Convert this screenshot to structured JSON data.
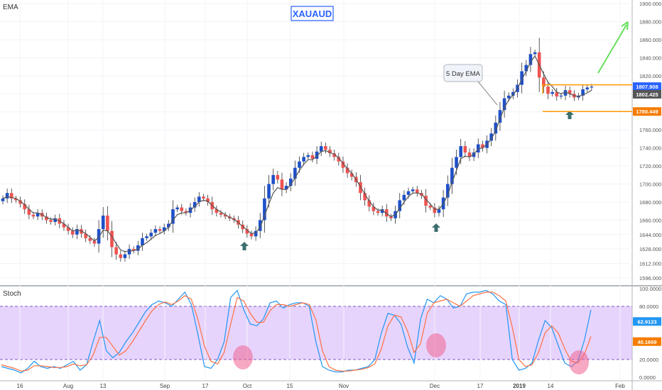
{
  "chart_data": {
    "type": "candlestick",
    "symbol_title": "XAUAUD",
    "main_indicator_label": "EMA",
    "ema_callout": "5 Day EMA",
    "lower_indicator_label": "Stoch",
    "x_tick_labels": [
      "16",
      "Aug",
      "13",
      "Sep",
      "17",
      "Oct",
      "15",
      "Nov",
      "Dec",
      "17",
      "2019",
      "14",
      "Feb"
    ],
    "price_axis": {
      "ticks": [
        "1900.000",
        "1880.000",
        "1860.000",
        "1840.000",
        "1820.000",
        "1800.000",
        "1780.000",
        "1760.000",
        "1740.000",
        "1720.000",
        "1700.000",
        "1680.000",
        "1660.000",
        "1644.000",
        "1628.000",
        "1612.000",
        "1596.000"
      ],
      "range": [
        1588,
        1904
      ]
    },
    "price_markers": [
      {
        "label": "1807.908",
        "value": 1808,
        "color": "#2962ff"
      },
      {
        "label": "1802.425",
        "value": 1799.5,
        "color": "#555555"
      },
      {
        "label": "1780.449",
        "value": 1780.4,
        "color": "#f57c00"
      }
    ],
    "stoch_axis": {
      "ticks": [
        "100.0000",
        "80.0000",
        "20.0000",
        "0.0000"
      ],
      "range": [
        0,
        100
      ],
      "overbought": 80,
      "oversold": 20
    },
    "stoch_markers": [
      {
        "label": "62.9123",
        "value": 62.9,
        "color": "#2196f3"
      },
      {
        "label": "40.1669",
        "value": 40.2,
        "color": "#f57c00"
      }
    ],
    "series": [
      {
        "name": "",
        "kind": "close",
        "values": [
          1684,
          1690,
          1684,
          1682,
          1678,
          1672,
          1666,
          1664,
          1668,
          1664,
          1660,
          1658,
          1662,
          1656,
          1652,
          1648,
          1644,
          1650,
          1645,
          1640,
          1637,
          1634,
          1650,
          1665,
          1648,
          1630,
          1622,
          1618,
          1622,
          1628,
          1626,
          1632,
          1640,
          1642,
          1646,
          1650,
          1648,
          1652,
          1656,
          1672,
          1674,
          1670,
          1668,
          1674,
          1680,
          1686,
          1684,
          1680,
          1672,
          1668,
          1666,
          1664,
          1662,
          1660,
          1655,
          1650,
          1645,
          1642,
          1648,
          1660,
          1684,
          1700,
          1710,
          1705,
          1694,
          1698,
          1706,
          1718,
          1725,
          1730,
          1732,
          1728,
          1736,
          1742,
          1738,
          1734,
          1730,
          1725,
          1718,
          1712,
          1708,
          1702,
          1690,
          1682,
          1675,
          1670,
          1668,
          1672,
          1664,
          1662,
          1670,
          1682,
          1688,
          1692,
          1694,
          1690,
          1687,
          1676,
          1674,
          1668,
          1672,
          1685,
          1700,
          1718,
          1730,
          1742,
          1735,
          1730,
          1735,
          1744,
          1740,
          1748,
          1756,
          1768,
          1782,
          1795,
          1798,
          1802,
          1810,
          1825,
          1832,
          1844,
          1846,
          1818,
          1808,
          1800,
          1802,
          1797,
          1798,
          1804,
          1800,
          1796,
          1798,
          1805,
          1807,
          1808
        ]
      },
      {
        "name": "",
        "kind": "ema",
        "values": [
          1684,
          1686,
          1685,
          1684,
          1681,
          1677,
          1672,
          1668,
          1668,
          1666,
          1663,
          1661,
          1661,
          1659,
          1656,
          1652,
          1648,
          1649,
          1648,
          1645,
          1641,
          1637,
          1641,
          1649,
          1648,
          1642,
          1634,
          1627,
          1625,
          1626,
          1626,
          1628,
          1632,
          1635,
          1639,
          1643,
          1645,
          1648,
          1652,
          1660,
          1666,
          1668,
          1668,
          1671,
          1675,
          1680,
          1682,
          1681,
          1676,
          1672,
          1669,
          1666,
          1663,
          1661,
          1657,
          1653,
          1649,
          1645,
          1646,
          1652,
          1665,
          1678,
          1690,
          1696,
          1694,
          1694,
          1699,
          1707,
          1715,
          1722,
          1727,
          1727,
          1731,
          1736,
          1737,
          1735,
          1733,
          1729,
          1723,
          1717,
          1712,
          1705,
          1697,
          1689,
          1681,
          1675,
          1671,
          1671,
          1667,
          1664,
          1666,
          1673,
          1680,
          1686,
          1690,
          1690,
          1689,
          1683,
          1678,
          1672,
          1672,
          1678,
          1688,
          1702,
          1715,
          1728,
          1731,
          1730,
          1733,
          1739,
          1740,
          1744,
          1750,
          1759,
          1772,
          1785,
          1793,
          1799,
          1806,
          1816,
          1825,
          1835,
          1842,
          1832,
          1822,
          1813,
          1808,
          1802,
          1800,
          1802,
          1800,
          1798,
          1797,
          1799,
          1801,
          1804
        ]
      },
      {
        "name": "",
        "kind": "stoch_k",
        "values": [
          12,
          10,
          8,
          5,
          10,
          18,
          12,
          10,
          12,
          10,
          14,
          18,
          8,
          14,
          40,
          64,
          30,
          22,
          28,
          40,
          50,
          62,
          74,
          82,
          86,
          84,
          80,
          88,
          96,
          82,
          48,
          12,
          10,
          20,
          40,
          90,
          98,
          76,
          60,
          58,
          66,
          84,
          86,
          78,
          82,
          84,
          84,
          80,
          40,
          12,
          8,
          6,
          6,
          8,
          8,
          10,
          12,
          20,
          50,
          72,
          70,
          60,
          34,
          16,
          66,
          88,
          84,
          92,
          88,
          78,
          80,
          94,
          96,
          96,
          98,
          94,
          86,
          82,
          20,
          8,
          10,
          16,
          42,
          64,
          56,
          36,
          16,
          12,
          18,
          42,
          76
        ]
      },
      {
        "name": "",
        "kind": "stoch_d",
        "values": [
          14,
          12,
          10,
          7,
          8,
          13,
          13,
          12,
          11,
          11,
          12,
          15,
          13,
          14,
          25,
          45,
          45,
          35,
          25,
          30,
          40,
          52,
          64,
          75,
          82,
          85,
          82,
          86,
          92,
          88,
          65,
          35,
          18,
          15,
          28,
          60,
          90,
          86,
          72,
          62,
          62,
          75,
          82,
          82,
          80,
          82,
          84,
          82,
          65,
          30,
          12,
          8,
          7,
          7,
          8,
          9,
          11,
          15,
          32,
          58,
          70,
          68,
          52,
          28,
          38,
          72,
          84,
          86,
          88,
          84,
          80,
          86,
          92,
          94,
          96,
          96,
          92,
          86,
          56,
          20,
          12,
          14,
          28,
          50,
          58,
          50,
          32,
          18,
          16,
          26,
          46
        ]
      }
    ]
  }
}
